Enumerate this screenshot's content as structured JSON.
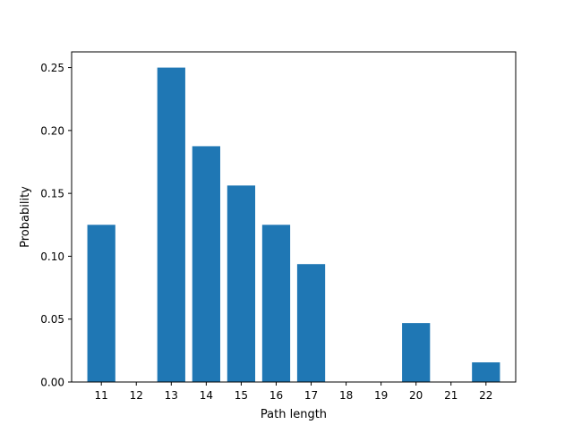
{
  "chart_data": {
    "type": "bar",
    "xlabel": "Path length",
    "ylabel": "Probability",
    "categories": [
      "11",
      "12",
      "13",
      "14",
      "15",
      "16",
      "17",
      "18",
      "19",
      "20",
      "21",
      "22"
    ],
    "x": [
      11,
      12,
      13,
      14,
      15,
      16,
      17,
      18,
      19,
      20,
      21,
      22
    ],
    "values": [
      0.125,
      0,
      0.25,
      0.1875,
      0.15625,
      0.125,
      0.09375,
      0,
      0,
      0.046875,
      0,
      0.015625
    ],
    "ylim": [
      0,
      0.2625
    ],
    "yticks": [
      "0.00",
      "0.05",
      "0.10",
      "0.15",
      "0.20",
      "0.25"
    ],
    "bar_color": "#1f77b4",
    "grid": false
  }
}
